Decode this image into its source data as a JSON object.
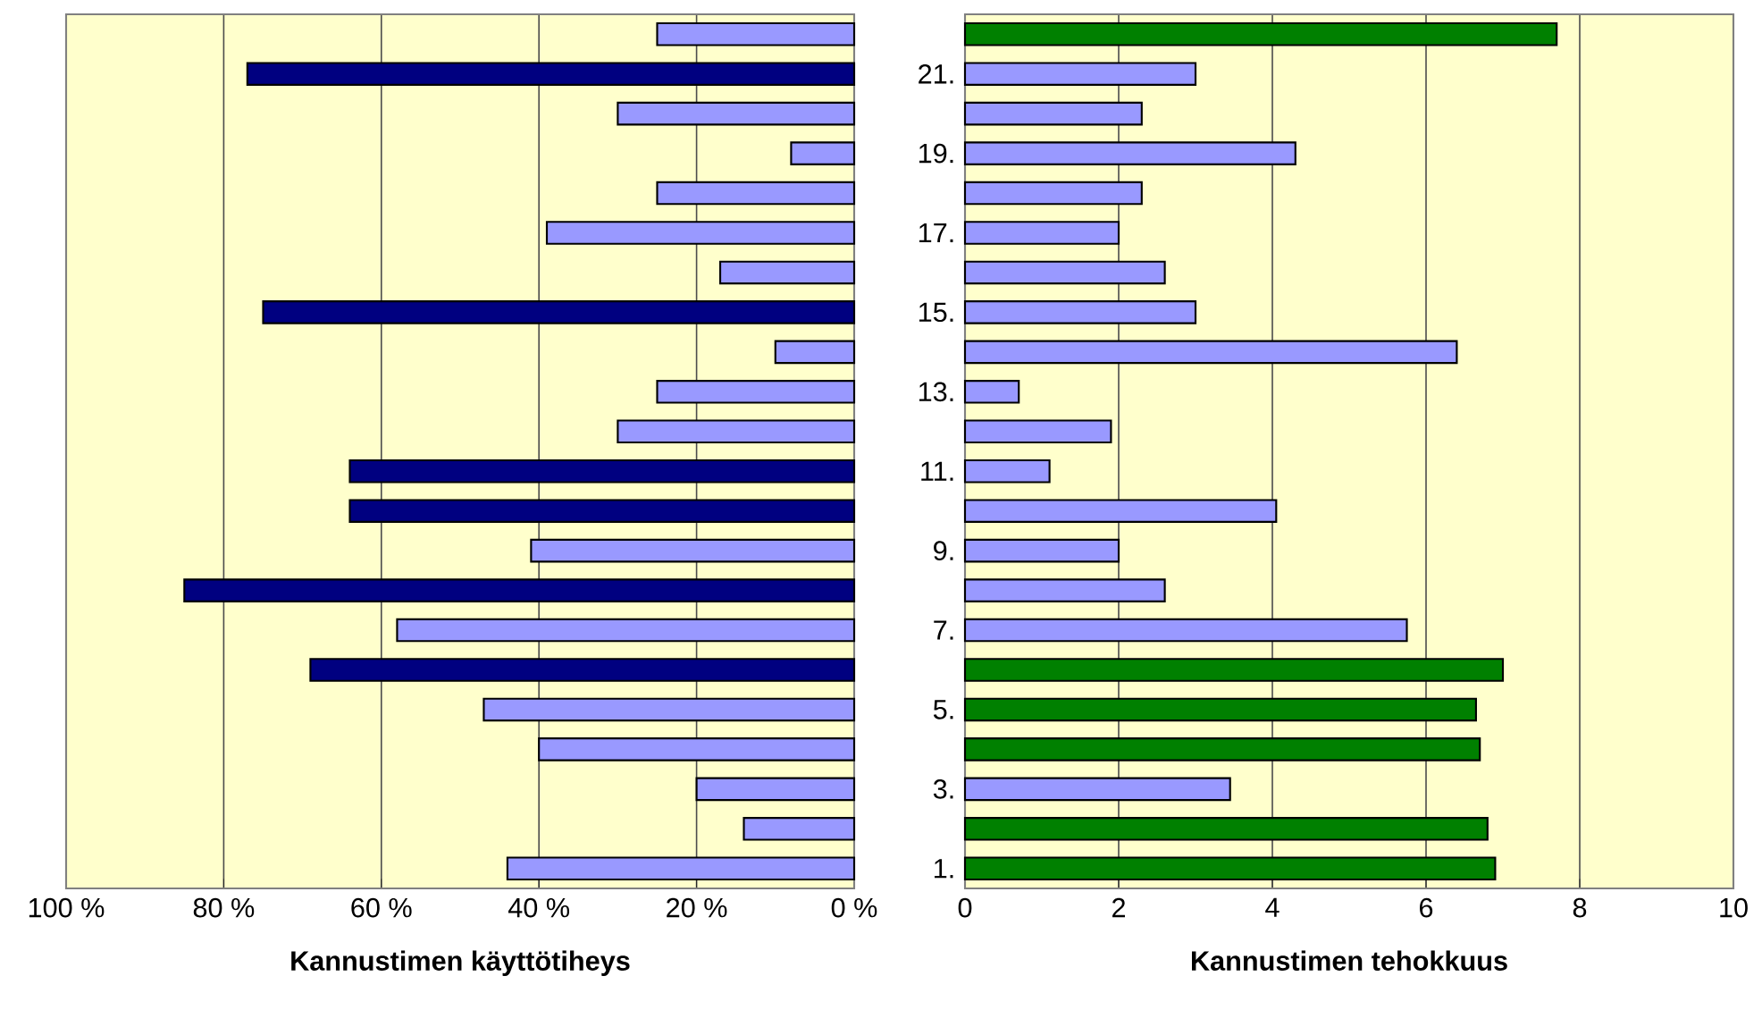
{
  "chart_data": [
    {
      "type": "bar",
      "orientation": "horizontal",
      "xlabel": "**Kannustimen käyttötiheys**",
      "categories": [
        null,
        "21.",
        null,
        "19.",
        null,
        "17.",
        null,
        "15.",
        null,
        "13.",
        null,
        "11.",
        null,
        "9.",
        null,
        "7.",
        null,
        "5.",
        null,
        "3.",
        null,
        "1."
      ],
      "values": [
        25,
        77,
        30,
        8,
        25,
        39,
        17,
        75,
        10,
        25,
        30,
        64,
        64,
        41,
        85,
        58,
        69,
        47,
        40,
        20,
        14,
        44
      ],
      "colors": [
        "#9999ff",
        "#000080",
        "#9999ff",
        "#9999ff",
        "#9999ff",
        "#9999ff",
        "#9999ff",
        "#000080",
        "#9999ff",
        "#9999ff",
        "#9999ff",
        "#000080",
        "#000080",
        "#9999ff",
        "#000080",
        "#9999ff",
        "#000080",
        "#9999ff",
        "#9999ff",
        "#9999ff",
        "#9999ff",
        "#9999ff"
      ],
      "xlim": [
        100,
        0
      ],
      "xticks": [
        {
          "value": 100,
          "label": "100 %"
        },
        {
          "value": 80,
          "label": "80 %"
        },
        {
          "value": 60,
          "label": "60 %"
        },
        {
          "value": 40,
          "label": "40 %"
        },
        {
          "value": 20,
          "label": "20 %"
        },
        {
          "value": 0,
          "label": "0 %"
        }
      ],
      "grid": "x",
      "tick_labels": "x"
    },
    {
      "type": "bar",
      "orientation": "horizontal",
      "xlabel": "**Kannustimen tehokkuus**",
      "categories": [
        null,
        "21.",
        null,
        "19.",
        null,
        "17.",
        null,
        "15.",
        null,
        "13.",
        null,
        "11.",
        null,
        "9.",
        null,
        "7.",
        null,
        "5.",
        null,
        "3.",
        null,
        "1."
      ],
      "values": [
        7.7,
        3.0,
        2.3,
        4.3,
        2.3,
        2.0,
        2.6,
        3.0,
        6.4,
        0.7,
        1.9,
        1.1,
        4.05,
        2.0,
        2.6,
        5.75,
        7.0,
        6.65,
        6.7,
        3.45,
        6.8,
        6.9
      ],
      "colors": [
        "#008000",
        "#9999ff",
        "#9999ff",
        "#9999ff",
        "#9999ff",
        "#9999ff",
        "#9999ff",
        "#9999ff",
        "#9999ff",
        "#9999ff",
        "#9999ff",
        "#9999ff",
        "#9999ff",
        "#9999ff",
        "#9999ff",
        "#9999ff",
        "#008000",
        "#008000",
        "#008000",
        "#9999ff",
        "#008000",
        "#008000"
      ],
      "xlim": [
        0,
        10
      ],
      "xticks": [
        0,
        2,
        4,
        6,
        8,
        10
      ],
      "grid": "x"
    }
  ]
}
